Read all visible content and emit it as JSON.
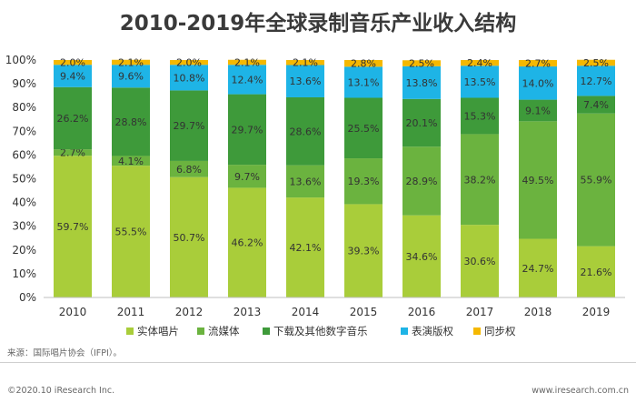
{
  "title": "2010-2019年全球录制音乐产业收入结构",
  "source": "来源：国际唱片协会（IFPI）。",
  "copyright": "©2020.10 iResearch Inc.",
  "website": "www.iresearch.com.cn",
  "chart_data": {
    "type": "bar",
    "stacked": true,
    "categories": [
      "2010",
      "2011",
      "2012",
      "2013",
      "2014",
      "2015",
      "2016",
      "2017",
      "2018",
      "2019"
    ],
    "series": [
      {
        "name": "实体唱片",
        "color": "#a9cd3a",
        "values": [
          59.7,
          55.5,
          50.7,
          46.2,
          42.1,
          39.3,
          34.6,
          30.6,
          24.7,
          21.6
        ]
      },
      {
        "name": "流媒体",
        "color": "#6bb33f",
        "values": [
          2.7,
          4.1,
          6.8,
          9.7,
          13.6,
          19.3,
          28.9,
          38.2,
          49.5,
          55.9
        ]
      },
      {
        "name": "下载及其他数字音乐",
        "color": "#3e9a3a",
        "values": [
          26.2,
          28.8,
          29.7,
          29.7,
          28.6,
          25.5,
          20.1,
          15.3,
          9.1,
          7.4
        ]
      },
      {
        "name": "表演版权",
        "color": "#1eb4e6",
        "values": [
          9.4,
          9.6,
          10.8,
          12.4,
          13.6,
          13.1,
          13.8,
          13.5,
          14.0,
          12.7
        ]
      },
      {
        "name": "同步权",
        "color": "#f5b800",
        "values": [
          2.0,
          2.1,
          2.0,
          2.1,
          2.1,
          2.8,
          2.5,
          2.4,
          2.7,
          2.5
        ]
      }
    ],
    "ylim": [
      0,
      100
    ],
    "yticks": [
      "0%",
      "10%",
      "20%",
      "30%",
      "40%",
      "50%",
      "60%",
      "70%",
      "80%",
      "90%",
      "100%"
    ],
    "value_labels": [
      [
        "59.7%",
        "55.5%",
        "50.7%",
        "46.2%",
        "42.1%",
        "39.3%",
        "34.6%",
        "30.6%",
        "24.7%",
        "21.6%"
      ],
      [
        "2.7%",
        "4.1%",
        "6.8%",
        "9.7%",
        "13.6%",
        "19.3%",
        "28.9%",
        "38.2%",
        "49.5%",
        "55.9%"
      ],
      [
        "26.2%",
        "28.8%",
        "29.7%",
        "29.7%",
        "28.6%",
        "25.5%",
        "20.1%",
        "15.3%",
        "9.1%",
        "7.4%"
      ],
      [
        "9.4%",
        "9.6%",
        "10.8%",
        "12.4%",
        "13.6%",
        "13.1%",
        "13.8%",
        "13.5%",
        "14.0%",
        "12.7%"
      ],
      [
        "2.0%",
        "2.1%",
        "2.0%",
        "2.1%",
        "2.1%",
        "2.8%",
        "2.5%",
        "2.4%",
        "2.7%",
        "2.5%"
      ]
    ],
    "legend_position": "bottom",
    "grid": false
  }
}
